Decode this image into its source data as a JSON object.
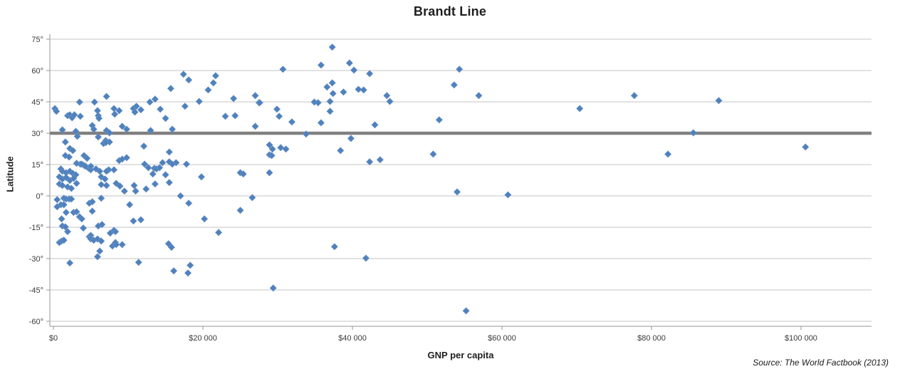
{
  "title": "Brandt Line",
  "source_note": "Source: The World Factbook (2013)",
  "colors": {
    "marker": "#4F81BD",
    "brandt_line": "#808080",
    "gridline": "#C6C6C6",
    "axis_line": "#969696",
    "tick_text": "#3a3a3a"
  },
  "chart_data": {
    "type": "scatter",
    "title": "Brandt Line",
    "xlabel": "GNP per capita",
    "ylabel": "Latitude",
    "xlim": [
      0,
      109500
    ],
    "ylim": [
      -63,
      78
    ],
    "grid": "horizontal-only",
    "legend": "none",
    "marker_shape": "diamond",
    "reference_line": {
      "label": "Brandt Line",
      "latitude": 30
    },
    "x_ticks": [
      {
        "value": 0,
        "label": "$0"
      },
      {
        "value": 20000,
        "label": "$20 000"
      },
      {
        "value": 40000,
        "label": "$40 000"
      },
      {
        "value": 60000,
        "label": "$60 000"
      },
      {
        "value": 80000,
        "label": "$80 000"
      },
      {
        "value": 100000,
        "label": "$100 000"
      }
    ],
    "y_ticks": [
      {
        "value": 75,
        "label": "75°"
      },
      {
        "value": 60,
        "label": "60°"
      },
      {
        "value": 45,
        "label": "45°"
      },
      {
        "value": 30,
        "label": "30°"
      },
      {
        "value": 15,
        "label": "15°"
      },
      {
        "value": 0,
        "label": "0°"
      },
      {
        "value": -15,
        "label": "-15°"
      },
      {
        "value": -30,
        "label": "-30°"
      },
      {
        "value": -45,
        "label": "-45°"
      },
      {
        "value": -60,
        "label": "-60°"
      }
    ],
    "points": [
      [
        200,
        41.8
      ],
      [
        400,
        40.5
      ],
      [
        3500,
        44.9
      ],
      [
        7100,
        47.6
      ],
      [
        5500,
        44.9
      ],
      [
        1900,
        38.4
      ],
      [
        2200,
        38.8
      ],
      [
        2500,
        37.4
      ],
      [
        2800,
        38.8
      ],
      [
        3600,
        38.1
      ],
      [
        5900,
        40.8
      ],
      [
        6000,
        38.4
      ],
      [
        6100,
        37.1
      ],
      [
        8100,
        41.8
      ],
      [
        8200,
        39.1
      ],
      [
        8800,
        40.8
      ],
      [
        10700,
        41.8
      ],
      [
        11100,
        42.9
      ],
      [
        10900,
        40.1
      ],
      [
        11700,
        41.2
      ],
      [
        12900,
        44.9
      ],
      [
        13000,
        31.3
      ],
      [
        5200,
        33.7
      ],
      [
        5400,
        31.9
      ],
      [
        9200,
        33.3
      ],
      [
        9800,
        31.9
      ],
      [
        1200,
        31.6
      ],
      [
        3000,
        30.9
      ],
      [
        3200,
        28.5
      ],
      [
        6000,
        28.2
      ],
      [
        7000,
        26.5
      ],
      [
        7500,
        25.8
      ],
      [
        7100,
        31.3
      ],
      [
        7500,
        30.2
      ],
      [
        1600,
        25.8
      ],
      [
        2200,
        22.7
      ],
      [
        2600,
        21.7
      ],
      [
        6700,
        25.1
      ],
      [
        7000,
        25.5
      ],
      [
        1600,
        19.3
      ],
      [
        2100,
        18.6
      ],
      [
        4100,
        19.3
      ],
      [
        4500,
        18.0
      ],
      [
        3600,
        15.2
      ],
      [
        4100,
        14.6
      ],
      [
        4700,
        13.2
      ],
      [
        5000,
        12.5
      ],
      [
        1000,
        12.9
      ],
      [
        1200,
        11.8
      ],
      [
        1700,
        11.1
      ],
      [
        2200,
        11.8
      ],
      [
        2600,
        10.8
      ],
      [
        3000,
        10.1
      ],
      [
        8800,
        16.9
      ],
      [
        9200,
        17.6
      ],
      [
        9800,
        18.3
      ],
      [
        12100,
        23.8
      ],
      [
        12200,
        15.2
      ],
      [
        12700,
        13.5
      ],
      [
        7400,
        12.5
      ],
      [
        6400,
        9.1
      ],
      [
        6900,
        8.1
      ],
      [
        5700,
        12.9
      ],
      [
        6200,
        11.8
      ],
      [
        7100,
        11.8
      ],
      [
        8100,
        12.5
      ],
      [
        3800,
        15.2
      ],
      [
        4300,
        14.2
      ],
      [
        5000,
        14.2
      ],
      [
        800,
        9.1
      ],
      [
        1200,
        8.1
      ],
      [
        1700,
        8.8
      ],
      [
        2200,
        7.4
      ],
      [
        2700,
        8.4
      ],
      [
        3100,
        15.6
      ],
      [
        800,
        5.7
      ],
      [
        1200,
        5.0
      ],
      [
        1900,
        4.3
      ],
      [
        2400,
        3.6
      ],
      [
        3100,
        6.0
      ],
      [
        6400,
        5.4
      ],
      [
        7100,
        5.0
      ],
      [
        8400,
        6.0
      ],
      [
        8900,
        4.7
      ],
      [
        9500,
        2.3
      ],
      [
        10800,
        5.0
      ],
      [
        11000,
        2.3
      ],
      [
        12400,
        3.3
      ],
      [
        500,
        -1.8
      ],
      [
        1400,
        -1.1
      ],
      [
        1700,
        -1.5
      ],
      [
        2100,
        -1.5
      ],
      [
        2400,
        -1.5
      ],
      [
        1000,
        -4.2
      ],
      [
        500,
        -5.2
      ],
      [
        1400,
        -4.2
      ],
      [
        4800,
        -3.5
      ],
      [
        5200,
        -2.8
      ],
      [
        6400,
        -1.1
      ],
      [
        10200,
        -4.2
      ],
      [
        1700,
        -7.9
      ],
      [
        2700,
        -7.9
      ],
      [
        3100,
        -7.6
      ],
      [
        5200,
        -7.3
      ],
      [
        1100,
        -11.0
      ],
      [
        3500,
        -10.0
      ],
      [
        3800,
        -11.0
      ],
      [
        10700,
        -12.0
      ],
      [
        11700,
        -11.4
      ],
      [
        1200,
        -14.4
      ],
      [
        1600,
        -14.8
      ],
      [
        4000,
        -15.4
      ],
      [
        6000,
        -14.4
      ],
      [
        6500,
        -13.7
      ],
      [
        1900,
        -17.1
      ],
      [
        800,
        -22.3
      ],
      [
        1100,
        -21.6
      ],
      [
        1400,
        -21.2
      ],
      [
        4800,
        -19.5
      ],
      [
        5000,
        -18.9
      ],
      [
        5000,
        -20.6
      ],
      [
        5400,
        -21.2
      ],
      [
        5900,
        -20.6
      ],
      [
        7600,
        -17.8
      ],
      [
        8100,
        -16.5
      ],
      [
        8300,
        -17.1
      ],
      [
        6400,
        -21.6
      ],
      [
        7900,
        -24.0
      ],
      [
        8300,
        -22.3
      ],
      [
        8400,
        -23.3
      ],
      [
        9200,
        -23.3
      ],
      [
        6200,
        -26.4
      ],
      [
        5900,
        -29.1
      ],
      [
        2200,
        -32.1
      ],
      [
        11400,
        -31.8
      ],
      [
        17400,
        58.2
      ],
      [
        21700,
        57.5
      ],
      [
        18100,
        55.5
      ],
      [
        21400,
        54.1
      ],
      [
        15700,
        51.4
      ],
      [
        20700,
        50.7
      ],
      [
        13600,
        46.3
      ],
      [
        19500,
        45.2
      ],
      [
        24100,
        46.6
      ],
      [
        27000,
        48.0
      ],
      [
        17600,
        42.9
      ],
      [
        14300,
        41.5
      ],
      [
        15000,
        37.1
      ],
      [
        23000,
        38.1
      ],
      [
        24300,
        38.4
      ],
      [
        15900,
        31.9
      ],
      [
        27000,
        33.3
      ],
      [
        27500,
        44.6
      ],
      [
        15500,
        21.0
      ],
      [
        14600,
        15.9
      ],
      [
        15500,
        16.3
      ],
      [
        16400,
        15.9
      ],
      [
        15900,
        15.2
      ],
      [
        13500,
        13.2
      ],
      [
        13800,
        12.9
      ],
      [
        14200,
        13.5
      ],
      [
        15000,
        10.1
      ],
      [
        17800,
        15.2
      ],
      [
        19800,
        9.1
      ],
      [
        13300,
        10.5
      ],
      [
        25000,
        11.1
      ],
      [
        25400,
        10.5
      ],
      [
        13600,
        5.7
      ],
      [
        15500,
        6.4
      ],
      [
        17000,
        0.0
      ],
      [
        18100,
        -3.5
      ],
      [
        26600,
        -0.8
      ],
      [
        25000,
        -6.9
      ],
      [
        20200,
        -11.0
      ],
      [
        22100,
        -17.5
      ],
      [
        15400,
        -22.9
      ],
      [
        15800,
        -24.6
      ],
      [
        18300,
        -33.2
      ],
      [
        16100,
        -35.9
      ],
      [
        18000,
        -36.9
      ],
      [
        37300,
        71.2
      ],
      [
        30700,
        60.6
      ],
      [
        35800,
        62.6
      ],
      [
        39600,
        63.6
      ],
      [
        40200,
        60.2
      ],
      [
        36600,
        52.1
      ],
      [
        37300,
        54.1
      ],
      [
        37400,
        49.0
      ],
      [
        38800,
        49.7
      ],
      [
        40800,
        51.0
      ],
      [
        41500,
        50.7
      ],
      [
        37000,
        45.2
      ],
      [
        34900,
        44.9
      ],
      [
        35400,
        44.6
      ],
      [
        27600,
        44.6
      ],
      [
        37000,
        40.5
      ],
      [
        29900,
        41.5
      ],
      [
        30200,
        38.1
      ],
      [
        31900,
        35.4
      ],
      [
        35800,
        35.0
      ],
      [
        33800,
        29.6
      ],
      [
        39800,
        27.5
      ],
      [
        28900,
        24.4
      ],
      [
        29300,
        22.4
      ],
      [
        30400,
        23.1
      ],
      [
        31100,
        22.4
      ],
      [
        28900,
        19.7
      ],
      [
        29200,
        19.3
      ],
      [
        38400,
        21.7
      ],
      [
        28900,
        11.1
      ],
      [
        37600,
        -24.3
      ],
      [
        41800,
        -29.8
      ],
      [
        29400,
        -44.1
      ],
      [
        42300,
        58.5
      ],
      [
        54300,
        60.6
      ],
      [
        53600,
        53.1
      ],
      [
        44600,
        48.0
      ],
      [
        45000,
        45.2
      ],
      [
        56900,
        48.0
      ],
      [
        43000,
        34.0
      ],
      [
        51600,
        36.4
      ],
      [
        50800,
        20.0
      ],
      [
        42300,
        16.3
      ],
      [
        43700,
        17.3
      ],
      [
        54000,
        1.9
      ],
      [
        60800,
        0.5
      ],
      [
        55200,
        -55.0
      ],
      [
        77700,
        48.0
      ],
      [
        70400,
        41.8
      ],
      [
        89000,
        45.6
      ],
      [
        85600,
        30.2
      ],
      [
        82200,
        20.0
      ],
      [
        100600,
        23.4
      ]
    ]
  }
}
